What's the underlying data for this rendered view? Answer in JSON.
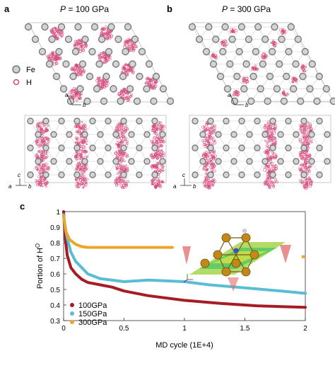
{
  "panels": {
    "a": {
      "letter": "a",
      "title_var": "P",
      "title_val": " = 100 GPa",
      "top_axes": [
        "a",
        "b"
      ],
      "bottom_axes": [
        "c",
        "a",
        "b"
      ]
    },
    "b": {
      "letter": "b",
      "title_var": "P",
      "title_val": " = 300 GPa",
      "top_axes": [
        "a",
        "b"
      ],
      "bottom_axes": [
        "c",
        "a",
        "b"
      ]
    },
    "c": {
      "letter": "c"
    }
  },
  "legend_atoms": {
    "fe": "Fe",
    "h": "H"
  },
  "colors": {
    "fe": "#9a9a9a",
    "h": "#d6467a",
    "s100": "#a51c22",
    "s150": "#5bbdd4",
    "s300": "#eaa62a"
  },
  "chart_data": {
    "type": "line",
    "title": "",
    "xlabel": "MD cycle (1E+4)",
    "ylabel_main": "Portion of H",
    "ylabel_sup": "O",
    "xlim": [
      0,
      2
    ],
    "ylim": [
      0.3,
      1.0
    ],
    "xticks": [
      "0",
      "0.5",
      "1",
      "1.5",
      "2"
    ],
    "yticks": [
      "0.3",
      "0.4",
      "0.5",
      "0.6",
      "0.7",
      "0.8",
      "0.9",
      "1"
    ],
    "legend_position": "bottom-left",
    "series": [
      {
        "name": "100GPa",
        "color": "#a51c22",
        "x": [
          0,
          0.01,
          0.03,
          0.06,
          0.1,
          0.15,
          0.2,
          0.3,
          0.4,
          0.5,
          0.7,
          1.0,
          1.3,
          1.6,
          1.8,
          2.0
        ],
        "y": [
          1.0,
          0.86,
          0.72,
          0.64,
          0.6,
          0.565,
          0.545,
          0.53,
          0.515,
          0.49,
          0.46,
          0.43,
          0.41,
          0.395,
          0.39,
          0.385
        ]
      },
      {
        "name": "150GPa",
        "color": "#5bbdd4",
        "x": [
          0,
          0.01,
          0.03,
          0.06,
          0.1,
          0.15,
          0.2,
          0.3,
          0.5,
          0.7,
          1.0,
          1.2,
          1.5,
          1.8,
          2.0
        ],
        "y": [
          0.98,
          0.91,
          0.83,
          0.74,
          0.68,
          0.64,
          0.6,
          0.57,
          0.55,
          0.56,
          0.55,
          0.53,
          0.51,
          0.49,
          0.475
        ]
      },
      {
        "name": "300GPa",
        "color": "#eaa62a",
        "x": [
          0,
          0.02,
          0.05,
          0.1,
          0.15,
          0.2,
          0.3,
          0.5,
          0.7,
          0.9
        ],
        "y": [
          0.97,
          0.87,
          0.82,
          0.79,
          0.775,
          0.77,
          0.77,
          0.77,
          0.77,
          0.77
        ]
      }
    ]
  }
}
